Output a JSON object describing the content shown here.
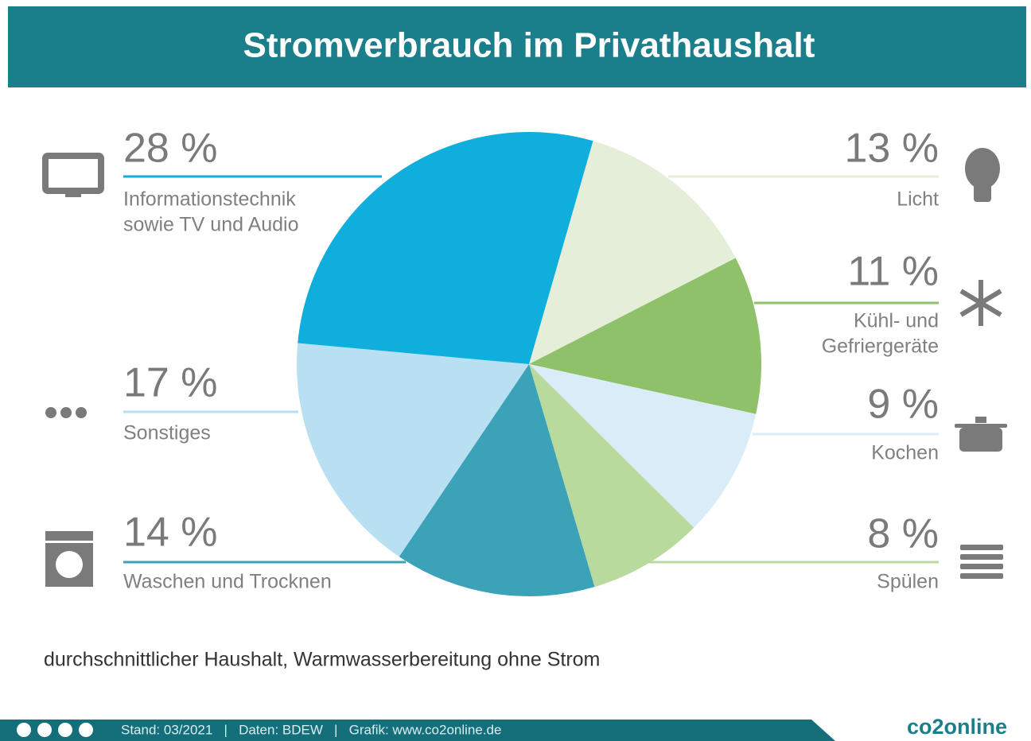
{
  "chart_data": {
    "type": "pie",
    "title": "Stromverbrauch im Privathaushalt",
    "categories": [
      [
        "Licht"
      ],
      [
        "Kühl- und",
        "Gefriergeräte"
      ],
      [
        "Kochen"
      ],
      [
        "Spülen"
      ],
      [
        "Waschen und Trocknen"
      ],
      [
        "Sonstiges"
      ],
      [
        "Informationstechnik",
        "sowie TV und Audio"
      ]
    ],
    "values": [
      13,
      11,
      9,
      8,
      14,
      17,
      28
    ],
    "value_labels": [
      "13 %",
      "11 %",
      "9 %",
      "8 %",
      "14 %",
      "17 %",
      "28 %"
    ],
    "colors": [
      "#e4eed8",
      "#8fc16a",
      "#d9ecf7",
      "#b9da9d",
      "#3ba2b8",
      "#b9dff3",
      "#0faedc"
    ],
    "note": "durchschnittlicher Haushalt, Warmwasserbereitung ohne Strom",
    "source": "Stand: 03/2021   |   Daten: BDEW   |   Grafik: www.co2online.de",
    "logo": "co2online"
  }
}
